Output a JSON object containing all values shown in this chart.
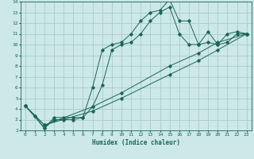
{
  "bg_color": "#cce8e8",
  "grid_color": "#aacccc",
  "line_color": "#1a6655",
  "xlabel": "Humidex (Indice chaleur)",
  "xlim": [
    -0.5,
    23.5
  ],
  "ylim": [
    2,
    14
  ],
  "xticks": [
    0,
    1,
    2,
    3,
    4,
    5,
    6,
    7,
    8,
    9,
    10,
    11,
    12,
    13,
    14,
    15,
    16,
    17,
    18,
    19,
    20,
    21,
    22,
    23
  ],
  "yticks": [
    2,
    3,
    4,
    5,
    6,
    7,
    8,
    9,
    10,
    11,
    12,
    13,
    14
  ],
  "series": [
    {
      "x": [
        0,
        1,
        2,
        3,
        4,
        5,
        6,
        7,
        8,
        9,
        10,
        11,
        12,
        13,
        14,
        15,
        16,
        17,
        18,
        19,
        20,
        21,
        22,
        23
      ],
      "y": [
        4.3,
        3.3,
        2.2,
        3.2,
        3.2,
        3.2,
        3.2,
        6.0,
        9.5,
        10.0,
        10.2,
        11.0,
        12.2,
        13.0,
        13.2,
        14.2,
        12.2,
        12.2,
        10.0,
        11.2,
        10.0,
        11.0,
        11.2,
        11.0
      ]
    },
    {
      "x": [
        0,
        1,
        2,
        3,
        4,
        5,
        6,
        7,
        8,
        9,
        10,
        11,
        12,
        13,
        14,
        15,
        16,
        17,
        18,
        19,
        20,
        21,
        22,
        23
      ],
      "y": [
        4.3,
        3.3,
        2.2,
        3.0,
        3.0,
        3.0,
        3.2,
        4.2,
        6.2,
        9.5,
        10.0,
        10.2,
        11.0,
        12.2,
        13.0,
        13.5,
        11.0,
        10.0,
        10.0,
        10.2,
        10.0,
        10.2,
        11.0,
        11.0
      ]
    },
    {
      "x": [
        0,
        2,
        7,
        10,
        15,
        18,
        20,
        23
      ],
      "y": [
        4.3,
        2.5,
        3.8,
        5.0,
        7.2,
        8.5,
        9.5,
        11.0
      ]
    },
    {
      "x": [
        0,
        2,
        7,
        10,
        15,
        18,
        20,
        23
      ],
      "y": [
        4.3,
        2.5,
        4.2,
        5.5,
        8.0,
        9.2,
        10.2,
        11.0
      ]
    }
  ]
}
